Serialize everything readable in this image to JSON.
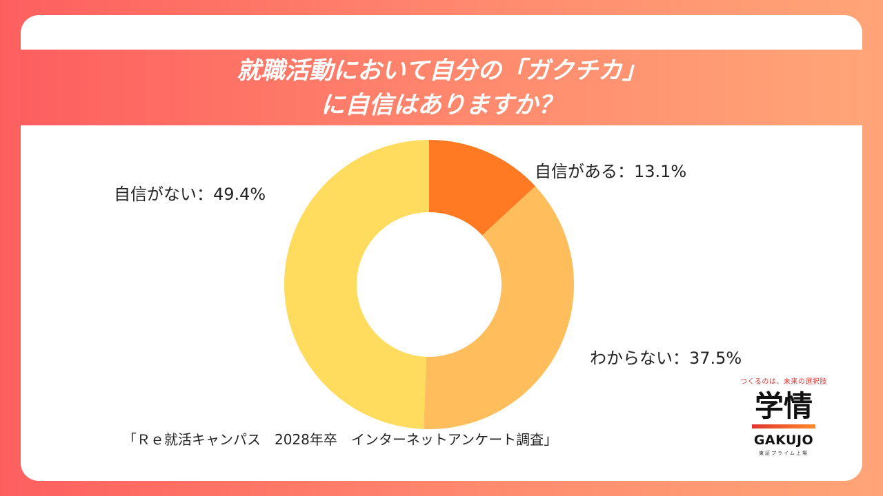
{
  "title_lines": [
    "就職活動において自分の「ガクチカ」",
    "に自信はありますか？"
  ],
  "chart_data": {
    "type": "pie",
    "donut": true,
    "slices": [
      {
        "label": "自信がある：13.1%",
        "value": 13.1,
        "color": "#ff7a22"
      },
      {
        "label": "わからない：37.5%",
        "value": 37.5,
        "color": "#ffbd5c"
      },
      {
        "label": "自信がない：49.4%",
        "value": 49.4,
        "color": "#ffdc5e"
      }
    ]
  },
  "source": "「Ｒｅ就活キャンパス　2028年卒　インターネットアンケート調査」",
  "logo": {
    "tagline": "つくるのは、未来の選択肢",
    "mark": "学情",
    "brand": "GAKUJO",
    "market": "東証プライム上場"
  }
}
